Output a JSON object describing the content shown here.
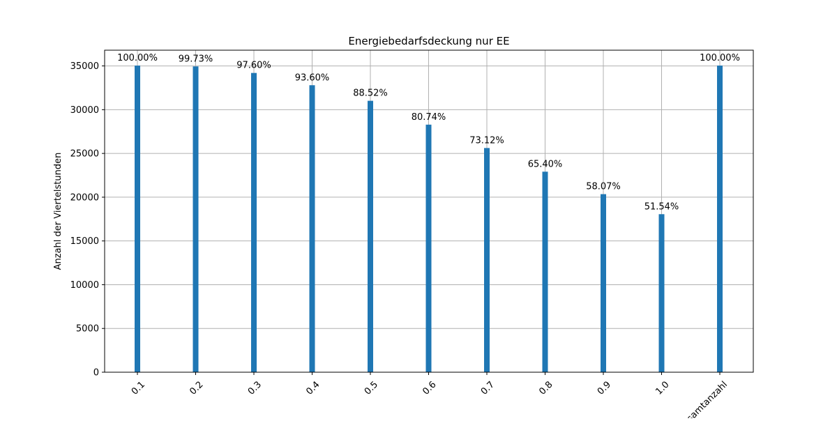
{
  "chart_data": {
    "type": "bar",
    "title": "Energiebedarfsdeckung nur EE",
    "xlabel": "",
    "ylabel": "Anzahl der Viertelstunden",
    "categories": [
      "0.1",
      "0.2",
      "0.3",
      "0.4",
      "0.5",
      "0.6",
      "0.7",
      "0.8",
      "0.9",
      "1.0",
      "Gesamtanzahl"
    ],
    "values": [
      35040,
      34945,
      34199,
      32797,
      31017,
      28291,
      25621,
      22916,
      20348,
      18059,
      35040
    ],
    "data_labels": [
      "100.00%",
      "99.73%",
      "97.60%",
      "93.60%",
      "88.52%",
      "80.74%",
      "73.12%",
      "65.40%",
      "58.07%",
      "51.54%",
      "100.00%"
    ],
    "ylim": [
      0,
      36800
    ],
    "yticks": [
      0,
      5000,
      10000,
      15000,
      20000,
      25000,
      30000,
      35000
    ],
    "grid": true,
    "colors": {
      "bar": "#1f77b4",
      "grid": "#b0b0b0",
      "axes": "#000000"
    }
  }
}
